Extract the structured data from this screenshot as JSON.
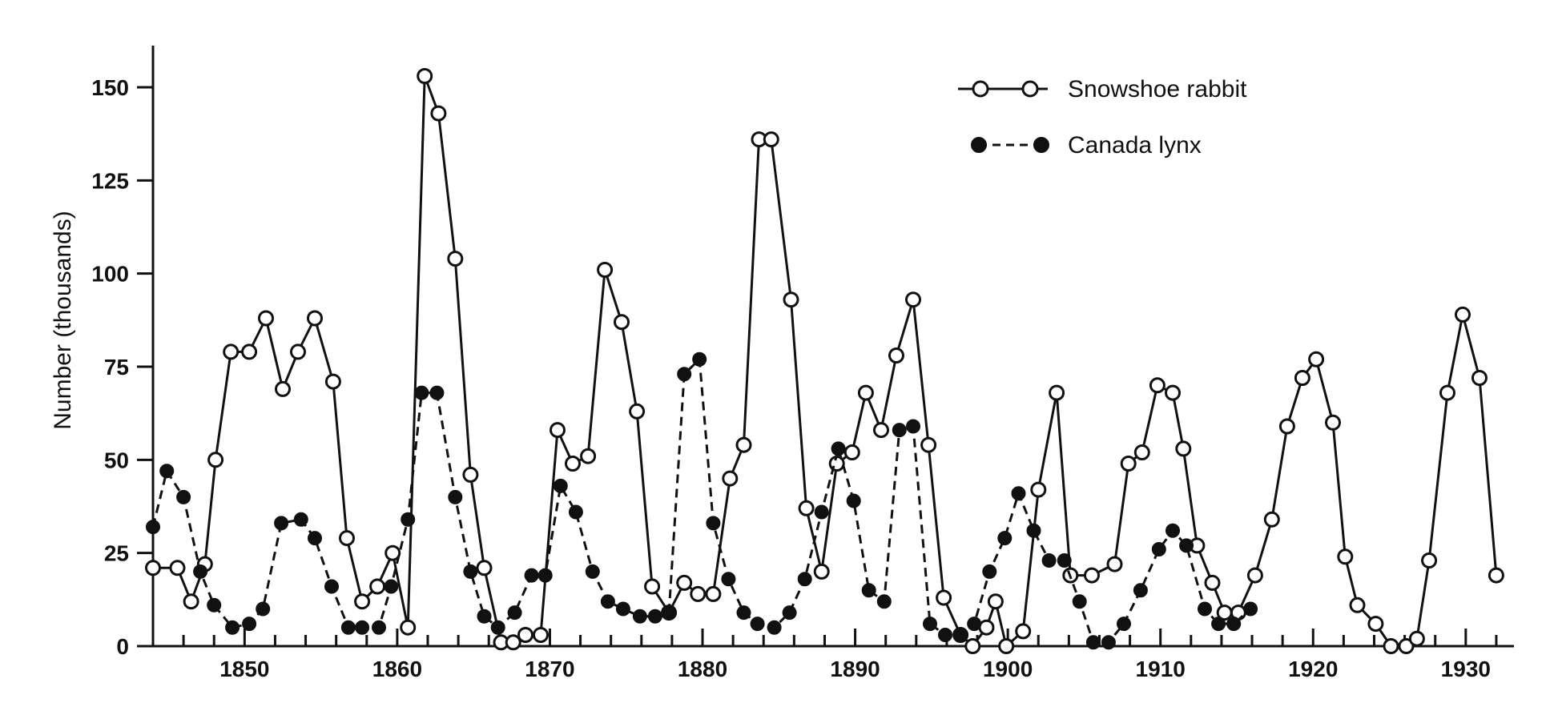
{
  "chart_data": {
    "type": "line",
    "ylabel": "Number (thousands)",
    "xlim": [
      1844,
      1934
    ],
    "ylim": [
      0,
      160
    ],
    "x_ticks": [
      1850,
      1860,
      1870,
      1880,
      1890,
      1900,
      1910,
      1920,
      1930
    ],
    "y_ticks": [
      0,
      25,
      50,
      75,
      100,
      125,
      150
    ],
    "grid": false,
    "legend_position": "top-right",
    "series": [
      {
        "name": "Snowshoe rabbit",
        "style": "solid line, open circles",
        "color": "#111111",
        "points": [
          [
            1844,
            21
          ],
          [
            1845.6,
            21
          ],
          [
            1846.5,
            12
          ],
          [
            1847.4,
            22
          ],
          [
            1848.1,
            50
          ],
          [
            1849.1,
            79
          ],
          [
            1850.3,
            79
          ],
          [
            1851.4,
            88
          ],
          [
            1852.5,
            69
          ],
          [
            1853.5,
            79
          ],
          [
            1854.6,
            88
          ],
          [
            1855.8,
            71
          ],
          [
            1856.7,
            29
          ],
          [
            1857.7,
            12
          ],
          [
            1858.7,
            16
          ],
          [
            1859.7,
            25
          ],
          [
            1860.7,
            5
          ],
          [
            1861.8,
            153
          ],
          [
            1862.7,
            143
          ],
          [
            1863.8,
            104
          ],
          [
            1864.8,
            46
          ],
          [
            1865.7,
            21
          ],
          [
            1866.8,
            1
          ],
          [
            1867.6,
            1
          ],
          [
            1868.4,
            3
          ],
          [
            1869.4,
            3
          ],
          [
            1870.5,
            58
          ],
          [
            1871.5,
            49
          ],
          [
            1872.5,
            51
          ],
          [
            1873.6,
            101
          ],
          [
            1874.7,
            87
          ],
          [
            1875.7,
            63
          ],
          [
            1876.7,
            16
          ],
          [
            1877.8,
            9
          ],
          [
            1878.8,
            17
          ],
          [
            1879.7,
            14
          ],
          [
            1880.7,
            14
          ],
          [
            1881.8,
            45
          ],
          [
            1882.7,
            54
          ],
          [
            1883.7,
            136
          ],
          [
            1884.5,
            136
          ],
          [
            1885.8,
            93
          ],
          [
            1886.8,
            37
          ],
          [
            1887.8,
            20
          ],
          [
            1888.8,
            49
          ],
          [
            1889.8,
            52
          ],
          [
            1890.7,
            68
          ],
          [
            1891.7,
            58
          ],
          [
            1892.7,
            78
          ],
          [
            1893.8,
            93
          ],
          [
            1894.8,
            54
          ],
          [
            1895.8,
            13
          ],
          [
            1896.9,
            3
          ],
          [
            1897.7,
            0
          ],
          [
            1898.6,
            5
          ],
          [
            1899.2,
            12
          ],
          [
            1899.9,
            0
          ],
          [
            1901.0,
            4
          ],
          [
            1902.0,
            42
          ],
          [
            1903.2,
            68
          ],
          [
            1904.1,
            19
          ],
          [
            1905.5,
            19
          ],
          [
            1907.0,
            22
          ],
          [
            1907.9,
            49
          ],
          [
            1908.8,
            52
          ],
          [
            1909.8,
            70
          ],
          [
            1910.8,
            68
          ],
          [
            1911.5,
            53
          ],
          [
            1912.4,
            27
          ],
          [
            1913.4,
            17
          ],
          [
            1914.2,
            9
          ],
          [
            1915.1,
            9
          ],
          [
            1916.2,
            19
          ],
          [
            1917.3,
            34
          ],
          [
            1918.3,
            59
          ],
          [
            1919.3,
            72
          ],
          [
            1920.2,
            77
          ],
          [
            1921.3,
            60
          ],
          [
            1922.1,
            24
          ],
          [
            1922.9,
            11
          ],
          [
            1924.1,
            6
          ],
          [
            1925.1,
            0
          ],
          [
            1926.1,
            0
          ],
          [
            1926.8,
            2
          ],
          [
            1927.6,
            23
          ],
          [
            1928.8,
            68
          ],
          [
            1929.8,
            89
          ],
          [
            1930.9,
            72
          ],
          [
            1932.0,
            19
          ]
        ]
      },
      {
        "name": "Canada lynx",
        "style": "dashed line, filled circles",
        "color": "#111111",
        "points": [
          [
            1844,
            32
          ],
          [
            1844.9,
            47
          ],
          [
            1846.0,
            40
          ],
          [
            1847.1,
            20
          ],
          [
            1848.0,
            11
          ],
          [
            1849.2,
            5
          ],
          [
            1850.3,
            6
          ],
          [
            1851.2,
            10
          ],
          [
            1852.4,
            33
          ],
          [
            1853.7,
            34
          ],
          [
            1854.6,
            29
          ],
          [
            1855.7,
            16
          ],
          [
            1856.8,
            5
          ],
          [
            1857.7,
            5
          ],
          [
            1858.8,
            5
          ],
          [
            1859.6,
            16
          ],
          [
            1860.7,
            34
          ],
          [
            1861.6,
            68
          ],
          [
            1862.6,
            68
          ],
          [
            1863.8,
            40
          ],
          [
            1864.8,
            20
          ],
          [
            1865.7,
            8
          ],
          [
            1866.6,
            5
          ],
          [
            1867.7,
            9
          ],
          [
            1868.8,
            19
          ],
          [
            1869.7,
            19
          ],
          [
            1870.7,
            43
          ],
          [
            1871.7,
            36
          ],
          [
            1872.8,
            20
          ],
          [
            1873.8,
            12
          ],
          [
            1874.8,
            10
          ],
          [
            1875.9,
            8
          ],
          [
            1876.9,
            8
          ],
          [
            1877.8,
            9
          ],
          [
            1878.8,
            73
          ],
          [
            1879.8,
            77
          ],
          [
            1880.7,
            33
          ],
          [
            1881.7,
            18
          ],
          [
            1882.7,
            9
          ],
          [
            1883.6,
            6
          ],
          [
            1884.7,
            5
          ],
          [
            1885.7,
            9
          ],
          [
            1886.7,
            18
          ],
          [
            1887.8,
            36
          ],
          [
            1888.9,
            53
          ],
          [
            1889.9,
            39
          ],
          [
            1890.9,
            15
          ],
          [
            1891.9,
            12
          ],
          [
            1892.9,
            58
          ],
          [
            1893.8,
            59
          ],
          [
            1894.9,
            6
          ],
          [
            1895.9,
            3
          ],
          [
            1896.9,
            3
          ],
          [
            1897.8,
            6
          ],
          [
            1898.8,
            20
          ],
          [
            1899.8,
            29
          ],
          [
            1900.7,
            41
          ],
          [
            1901.7,
            31
          ],
          [
            1902.7,
            23
          ],
          [
            1903.7,
            23
          ],
          [
            1904.7,
            12
          ],
          [
            1905.6,
            1
          ],
          [
            1906.6,
            1
          ],
          [
            1907.6,
            6
          ],
          [
            1908.7,
            15
          ],
          [
            1909.9,
            26
          ],
          [
            1910.8,
            31
          ],
          [
            1911.7,
            27
          ],
          [
            1912.9,
            10
          ],
          [
            1913.8,
            6
          ],
          [
            1914.8,
            6
          ],
          [
            1915.9,
            10
          ]
        ]
      }
    ],
    "legend": [
      {
        "label": "Snowshoe rabbit",
        "marker": "open-circle",
        "line": "solid"
      },
      {
        "label": "Canada lynx",
        "marker": "filled-circle",
        "line": "dashed"
      }
    ]
  }
}
